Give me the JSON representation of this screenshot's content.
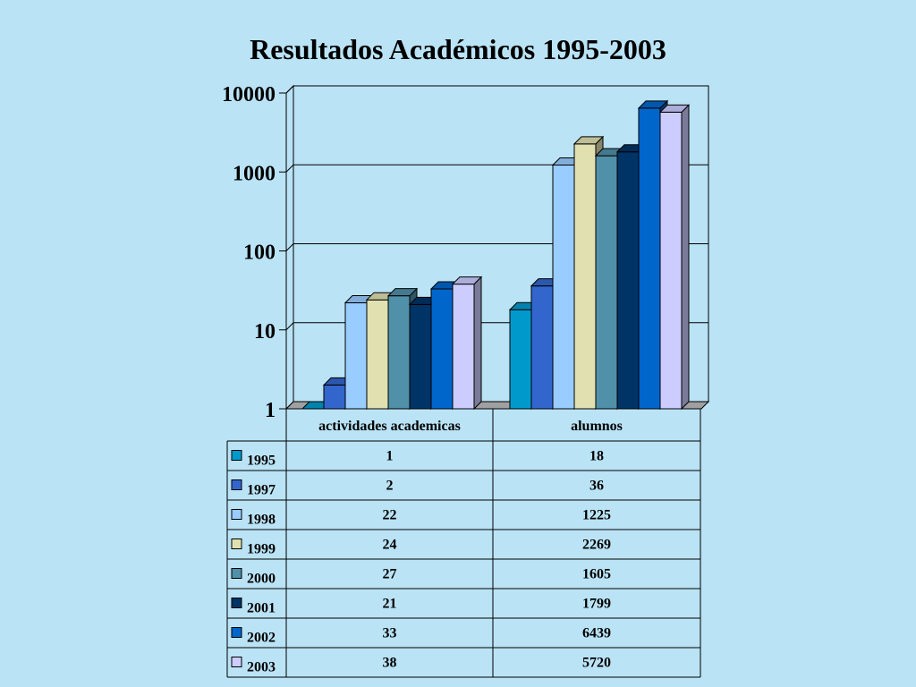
{
  "chart_data": {
    "type": "bar",
    "title": "Resultados Académicos 1995-2003",
    "categories": [
      "actividades academicas",
      "alumnos"
    ],
    "y_scale": "log",
    "ylim": [
      1,
      10000
    ],
    "y_ticks": [
      "1",
      "10",
      "100",
      "1000",
      "10000"
    ],
    "grid": true,
    "legend": "data-table",
    "series": [
      {
        "name": "1995",
        "color": "#0099CC",
        "values": [
          1,
          18
        ]
      },
      {
        "name": "1997",
        "color": "#3366CC",
        "values": [
          2,
          36
        ]
      },
      {
        "name": "1998",
        "color": "#99CCFF",
        "values": [
          22,
          1225
        ]
      },
      {
        "name": "1999",
        "color": "#E0E0B0",
        "values": [
          24,
          2269
        ]
      },
      {
        "name": "2000",
        "color": "#5090A8",
        "values": [
          27,
          1605
        ]
      },
      {
        "name": "2001",
        "color": "#003366",
        "values": [
          21,
          1799
        ]
      },
      {
        "name": "2002",
        "color": "#0066CC",
        "values": [
          33,
          6439
        ]
      },
      {
        "name": "2003",
        "color": "#CCCCFF",
        "values": [
          38,
          5720
        ]
      }
    ]
  }
}
